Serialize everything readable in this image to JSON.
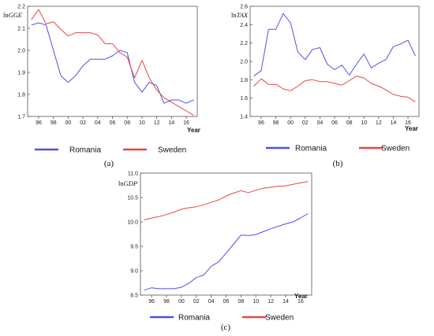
{
  "colors": {
    "romania": "#5050e6",
    "sweden": "#e64646"
  },
  "legend": [
    "Romania",
    "Sweden"
  ],
  "chart_data": [
    {
      "type": "line",
      "panel_caption": "(a)",
      "ylabel_prefix": "ln",
      "ylabel_var": "GGE",
      "xlabel": "Year",
      "xlim": [
        1994.5,
        2017.5
      ],
      "ylim": [
        1.7,
        2.2
      ],
      "yticks": [
        "1.7",
        "1.8",
        "1.9",
        "2.0",
        "2.1",
        "2.2"
      ],
      "xticks": [
        "96",
        "98",
        "00",
        "02",
        "04",
        "06",
        "08",
        "10",
        "12",
        "14",
        "16"
      ],
      "x": [
        1995,
        1996,
        1997,
        1998,
        1999,
        2000,
        2001,
        2002,
        2003,
        2004,
        2005,
        2006,
        2007,
        2008,
        2009,
        2010,
        2011,
        2012,
        2013,
        2014,
        2015,
        2016,
        2017
      ],
      "series": [
        {
          "name": "Romania",
          "values": [
            2.115,
            2.125,
            2.115,
            2.0,
            1.885,
            1.855,
            1.885,
            1.93,
            1.96,
            1.96,
            1.96,
            1.975,
            2.0,
            1.99,
            1.855,
            1.81,
            1.855,
            1.84,
            1.76,
            1.775,
            1.775,
            1.76,
            1.775
          ]
        },
        {
          "name": "Sweden",
          "values": [
            2.14,
            2.185,
            2.12,
            2.13,
            2.095,
            2.065,
            2.08,
            2.08,
            2.08,
            2.07,
            2.03,
            2.03,
            1.99,
            1.97,
            1.875,
            1.955,
            1.875,
            1.82,
            1.785,
            1.765,
            1.745,
            1.725,
            1.705
          ]
        }
      ]
    },
    {
      "type": "line",
      "panel_caption": "(b)",
      "ylabel_prefix": "ln",
      "ylabel_var": "TAX",
      "xlabel": "Year",
      "xlim": [
        1994.5,
        2017.5
      ],
      "ylim": [
        1.4,
        2.6
      ],
      "yticks": [
        "1.4",
        "1.6",
        "1.8",
        "2.0",
        "2.2",
        "2.4",
        "2.6"
      ],
      "xticks": [
        "96",
        "98",
        "00",
        "02",
        "04",
        "06",
        "08",
        "10",
        "12",
        "14",
        "16"
      ],
      "x": [
        1995,
        1996,
        1997,
        1998,
        1999,
        2000,
        2001,
        2002,
        2003,
        2004,
        2005,
        2006,
        2007,
        2008,
        2009,
        2010,
        2011,
        2012,
        2013,
        2014,
        2015,
        2016,
        2017
      ],
      "series": [
        {
          "name": "Romania",
          "values": [
            1.84,
            1.9,
            2.35,
            2.35,
            2.52,
            2.42,
            2.1,
            2.02,
            2.13,
            2.15,
            1.97,
            1.91,
            1.96,
            1.85,
            1.97,
            2.08,
            1.93,
            1.98,
            2.02,
            2.16,
            2.19,
            2.23,
            2.06
          ]
        },
        {
          "name": "Sweden",
          "values": [
            1.73,
            1.81,
            1.75,
            1.75,
            1.7,
            1.68,
            1.73,
            1.79,
            1.8,
            1.78,
            1.78,
            1.76,
            1.74,
            1.79,
            1.84,
            1.82,
            1.76,
            1.73,
            1.69,
            1.64,
            1.62,
            1.61,
            1.56
          ]
        }
      ]
    },
    {
      "type": "line",
      "panel_caption": "(c)",
      "ylabel_prefix": "ln",
      "ylabel_var": "GDP",
      "xlabel": "Year",
      "xlim": [
        1994.5,
        2017.5
      ],
      "ylim": [
        8.5,
        11.0
      ],
      "yticks": [
        "8.5",
        "9.0",
        "9.5",
        "10.0",
        "10.5",
        "11.0"
      ],
      "xticks": [
        "96",
        "98",
        "00",
        "02",
        "04",
        "06",
        "08",
        "10",
        "12",
        "14",
        "16"
      ],
      "x": [
        1995,
        1996,
        1997,
        1998,
        1999,
        2000,
        2001,
        2002,
        2003,
        2004,
        2005,
        2006,
        2007,
        2008,
        2009,
        2010,
        2011,
        2012,
        2013,
        2014,
        2015,
        2016,
        2017
      ],
      "series": [
        {
          "name": "Romania",
          "values": [
            8.6,
            8.65,
            8.63,
            8.63,
            8.63,
            8.66,
            8.74,
            8.86,
            8.91,
            9.09,
            9.18,
            9.36,
            9.54,
            9.73,
            9.72,
            9.74,
            9.8,
            9.86,
            9.91,
            9.96,
            10.0,
            10.08,
            10.17
          ]
        },
        {
          "name": "Sweden",
          "values": [
            10.04,
            10.08,
            10.11,
            10.15,
            10.2,
            10.26,
            10.29,
            10.31,
            10.35,
            10.4,
            10.45,
            10.53,
            10.59,
            10.64,
            10.6,
            10.65,
            10.69,
            10.71,
            10.73,
            10.74,
            10.77,
            10.8,
            10.83
          ]
        }
      ]
    }
  ]
}
